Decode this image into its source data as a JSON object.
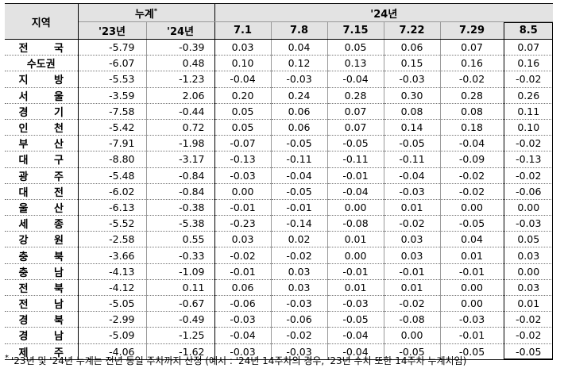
{
  "header": {
    "region": "지역",
    "cumulative": "누계",
    "cumulative_mark": "*",
    "year_group": "'24년",
    "cols": [
      "'23년",
      "'24년",
      "7.1",
      "7.8",
      "7.15",
      "7.22",
      "7.29",
      "8.5"
    ]
  },
  "rows": [
    {
      "region": "전 국",
      "values": [
        "-5.79",
        "-0.39",
        "0.03",
        "0.04",
        "0.05",
        "0.06",
        "0.07",
        "0.07"
      ]
    },
    {
      "region": "수도권",
      "values": [
        "-6.07",
        "0.48",
        "0.10",
        "0.12",
        "0.13",
        "0.15",
        "0.16",
        "0.16"
      ]
    },
    {
      "region": "지 방",
      "values": [
        "-5.53",
        "-1.23",
        "-0.04",
        "-0.03",
        "-0.04",
        "-0.03",
        "-0.02",
        "-0.02"
      ]
    },
    {
      "region": "서 울",
      "values": [
        "-3.59",
        "2.06",
        "0.20",
        "0.24",
        "0.28",
        "0.30",
        "0.28",
        "0.26"
      ]
    },
    {
      "region": "경 기",
      "values": [
        "-7.58",
        "-0.44",
        "0.05",
        "0.06",
        "0.07",
        "0.08",
        "0.08",
        "0.11"
      ]
    },
    {
      "region": "인 천",
      "values": [
        "-5.42",
        "0.72",
        "0.05",
        "0.06",
        "0.07",
        "0.14",
        "0.18",
        "0.10"
      ]
    },
    {
      "region": "부 산",
      "values": [
        "-7.91",
        "-1.98",
        "-0.07",
        "-0.05",
        "-0.05",
        "-0.05",
        "-0.04",
        "-0.02"
      ]
    },
    {
      "region": "대 구",
      "values": [
        "-8.80",
        "-3.17",
        "-0.13",
        "-0.11",
        "-0.11",
        "-0.11",
        "-0.09",
        "-0.13"
      ]
    },
    {
      "region": "광 주",
      "values": [
        "-5.48",
        "-0.84",
        "-0.03",
        "-0.04",
        "-0.01",
        "-0.04",
        "-0.02",
        "-0.02"
      ]
    },
    {
      "region": "대 전",
      "values": [
        "-6.02",
        "-0.84",
        "0.00",
        "-0.05",
        "-0.04",
        "-0.03",
        "-0.02",
        "-0.06"
      ]
    },
    {
      "region": "울 산",
      "values": [
        "-6.13",
        "-0.38",
        "-0.01",
        "-0.01",
        "0.00",
        "0.01",
        "0.00",
        "0.00"
      ]
    },
    {
      "region": "세 종",
      "values": [
        "-5.52",
        "-5.38",
        "-0.23",
        "-0.14",
        "-0.08",
        "-0.02",
        "-0.05",
        "-0.03"
      ]
    },
    {
      "region": "강 원",
      "values": [
        "-2.58",
        "0.55",
        "0.03",
        "0.02",
        "0.01",
        "0.03",
        "0.04",
        "0.05"
      ]
    },
    {
      "region": "충 북",
      "values": [
        "-3.66",
        "-0.33",
        "-0.02",
        "-0.02",
        "0.00",
        "0.03",
        "0.01",
        "0.03"
      ]
    },
    {
      "region": "충 남",
      "values": [
        "-4.13",
        "-1.09",
        "-0.01",
        "0.03",
        "-0.01",
        "-0.01",
        "-0.01",
        "0.00"
      ]
    },
    {
      "region": "전 북",
      "values": [
        "-4.12",
        "0.11",
        "0.06",
        "0.03",
        "0.01",
        "0.01",
        "0.00",
        "0.03"
      ]
    },
    {
      "region": "전 남",
      "values": [
        "-5.05",
        "-0.67",
        "-0.06",
        "-0.03",
        "-0.03",
        "-0.02",
        "0.00",
        "0.01"
      ]
    },
    {
      "region": "경 북",
      "values": [
        "-2.99",
        "-0.49",
        "-0.03",
        "-0.06",
        "-0.05",
        "-0.08",
        "-0.03",
        "-0.02"
      ]
    },
    {
      "region": "경 남",
      "values": [
        "-5.09",
        "-1.25",
        "-0.04",
        "-0.02",
        "-0.04",
        "0.00",
        "-0.01",
        "-0.02"
      ]
    },
    {
      "region": "제 주",
      "values": [
        "-4.06",
        "-1.62",
        "-0.03",
        "-0.03",
        "-0.04",
        "-0.05",
        "-0.05",
        "-0.05"
      ]
    }
  ],
  "footnote": {
    "mark": "*",
    "text": "'23년 및 '24년 누계는 전년 동일 주차까지 산정 (예시 : '24년 14주차의 경우, '23년 수치 또한 14주차 누계치임)"
  }
}
